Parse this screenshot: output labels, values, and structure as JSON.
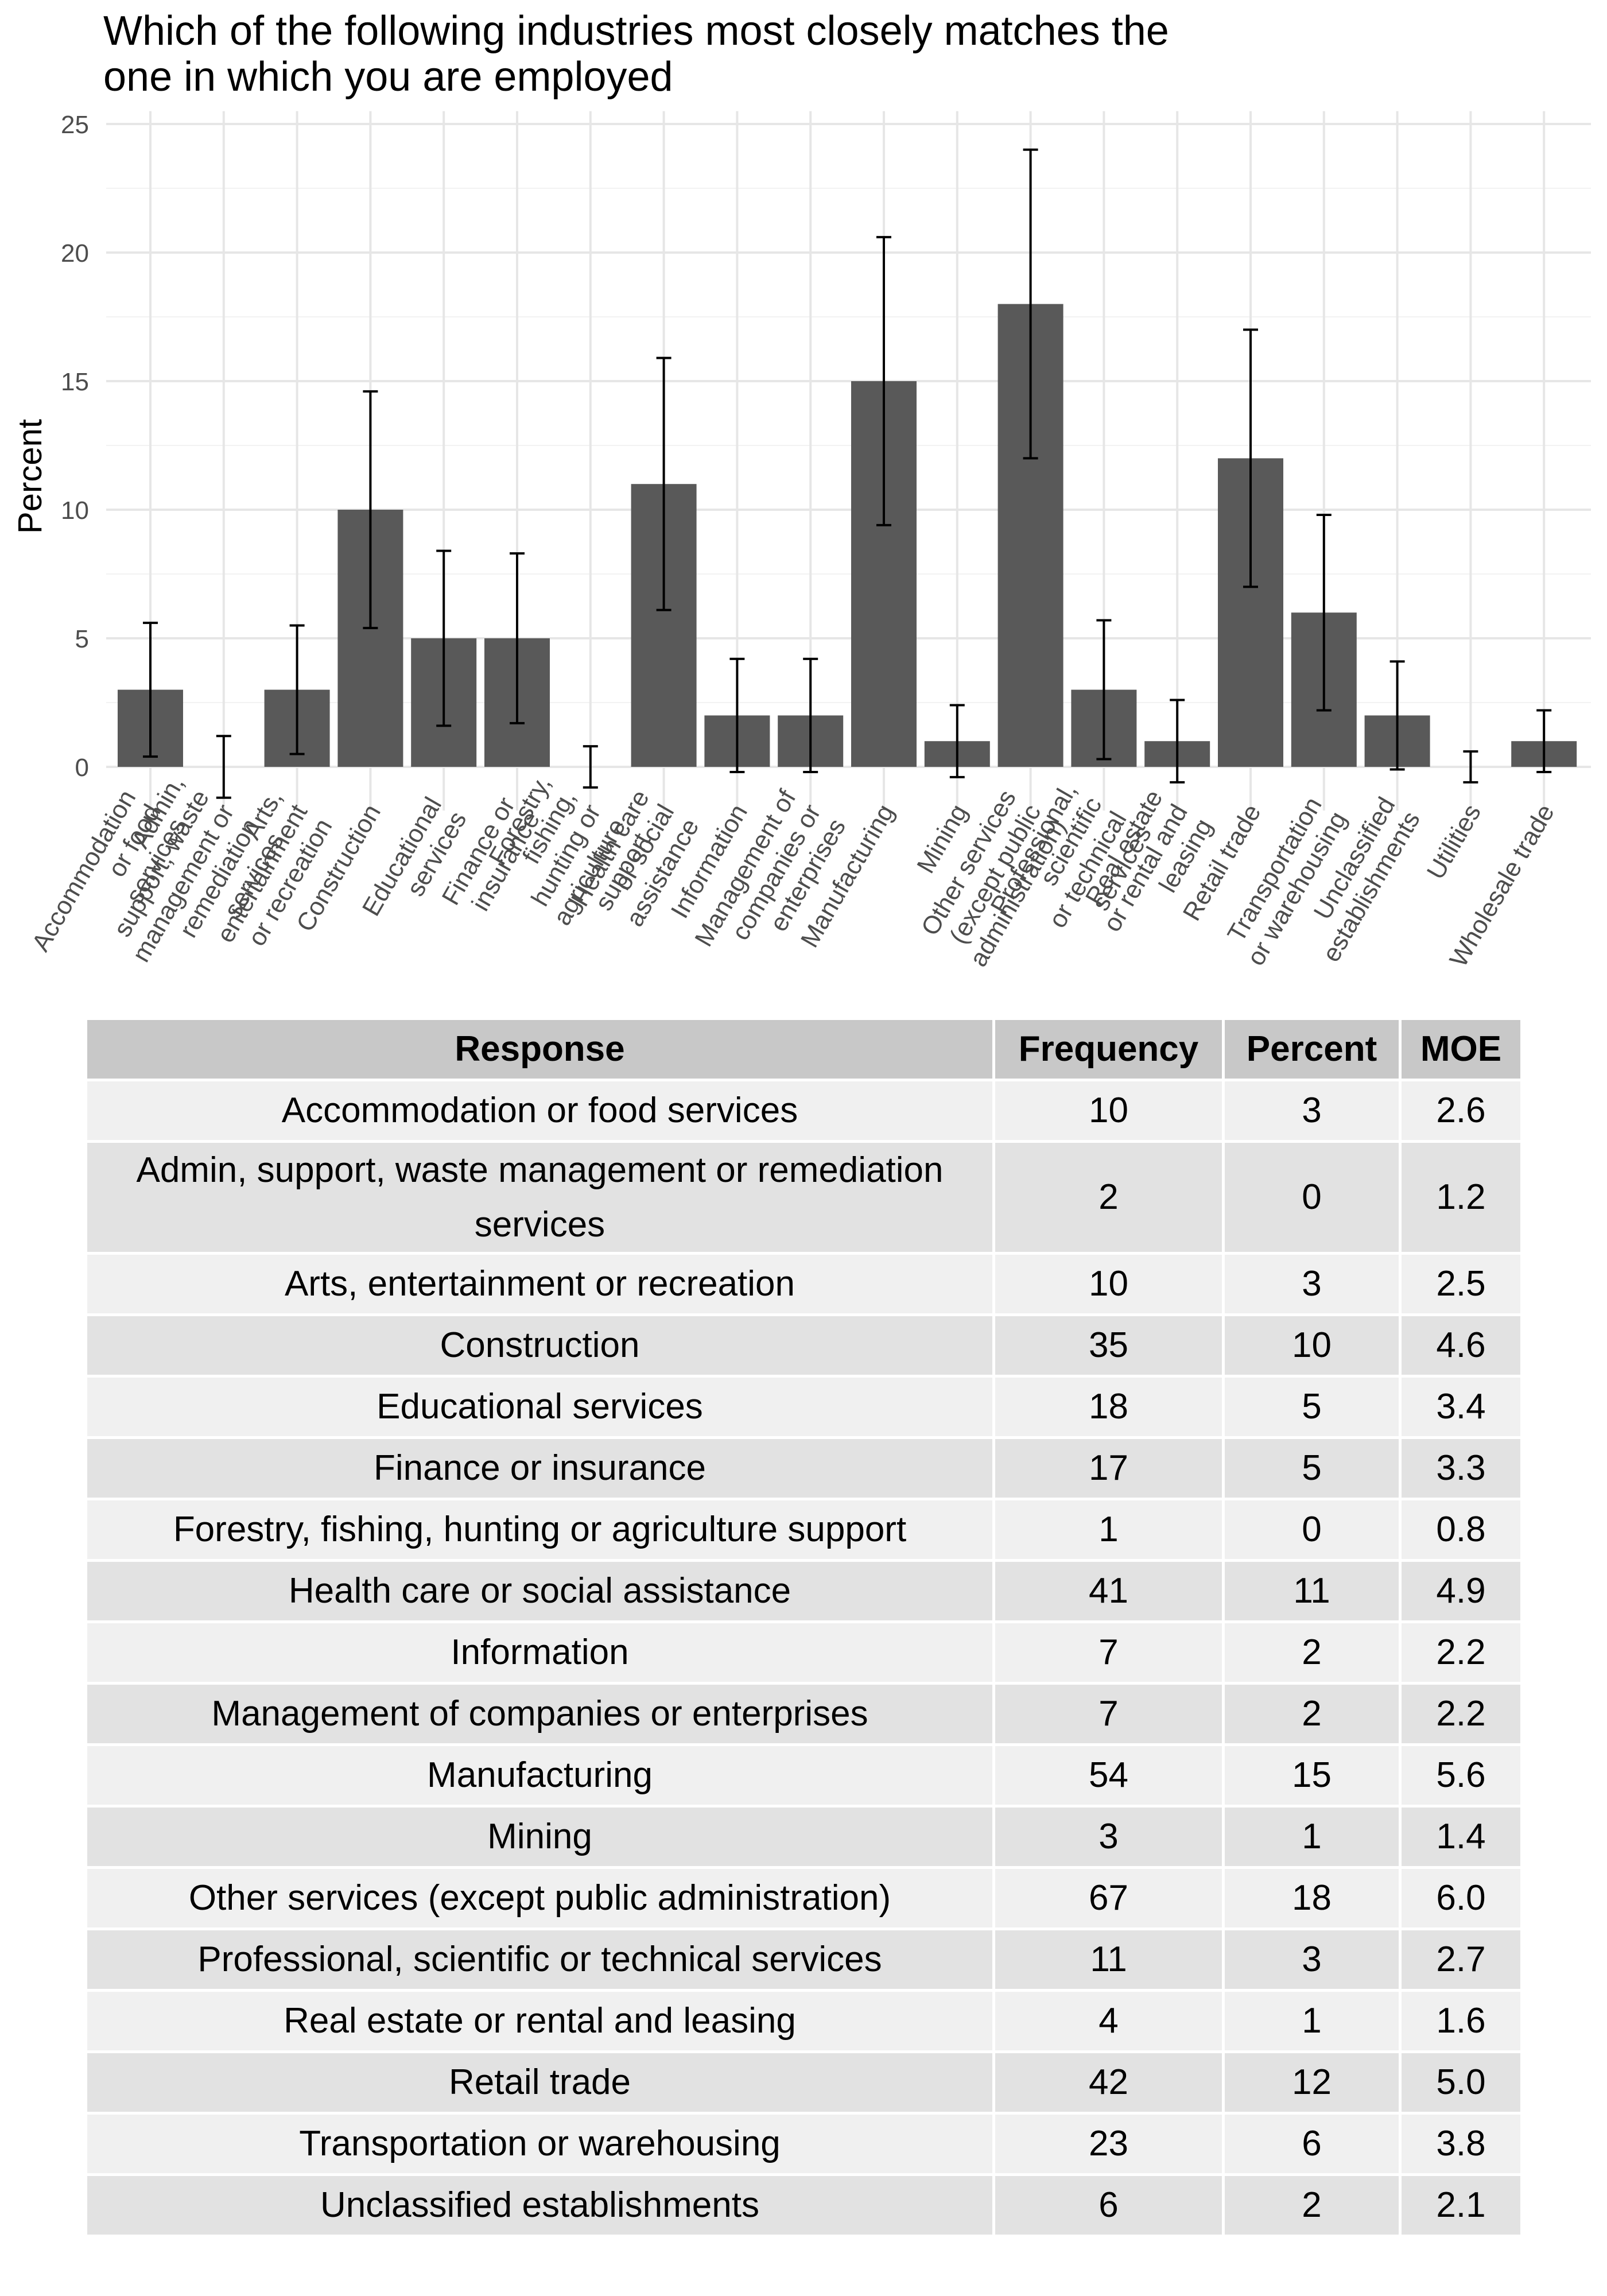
{
  "chart_data": {
    "type": "bar",
    "title": "Which of the following industries most closely matches the one in which you are employed",
    "title_lines": [
      "Which of the following industries most closely matches the",
      "one in which you are employed"
    ],
    "xlabel": "",
    "ylabel": "Percent",
    "ylim": [
      -1.7,
      25.5
    ],
    "yticks": [
      0,
      5,
      10,
      15,
      20,
      25
    ],
    "grid": true,
    "error_bars": true,
    "bar_color": "#595959",
    "categories": [
      "Accommodation or food services",
      "Admin, support, waste management or remediation services",
      "Arts, entertainment or recreation",
      "Construction",
      "Educational services",
      "Finance or insurance",
      "Forestry, fishing, hunting or agriculture support",
      "Health care or social assistance",
      "Information",
      "Management of companies or enterprises",
      "Manufacturing",
      "Mining",
      "Other services (except public administration)",
      "Professional, scientific or technical services",
      "Real estate or rental and leasing",
      "Retail trade",
      "Transportation or warehousing",
      "Unclassified establishments",
      "Utilities",
      "Wholesale trade"
    ],
    "tick_labels": [
      [
        "Accommodation",
        "or food",
        "services"
      ],
      [
        "Admin,",
        "support, waste",
        "management or",
        "remediation",
        "services"
      ],
      [
        "Arts,",
        "entertainment",
        "or recreation"
      ],
      [
        "Construction"
      ],
      [
        "Educational",
        "services"
      ],
      [
        "Finance or",
        "insurance"
      ],
      [
        "Forestry,",
        "fishing,",
        "hunting or",
        "agriculture",
        "support"
      ],
      [
        "Health care",
        "or social",
        "assistance"
      ],
      [
        "Information"
      ],
      [
        "Management of",
        "companies or",
        "enterprises"
      ],
      [
        "Manufacturing"
      ],
      [
        "Mining"
      ],
      [
        "Other services",
        "(except public",
        "administration)"
      ],
      [
        "Professional,",
        "scientific",
        "or technical",
        "services"
      ],
      [
        "Real estate",
        "or rental and",
        "leasing"
      ],
      [
        "Retail trade"
      ],
      [
        "Transportation",
        "or warehousing"
      ],
      [
        "Unclassified",
        "establishments"
      ],
      [
        "Utilities"
      ],
      [
        "Wholesale trade"
      ]
    ],
    "values": [
      3,
      0,
      3,
      10,
      5,
      5,
      0,
      11,
      2,
      2,
      15,
      1,
      18,
      3,
      1,
      12,
      6,
      2,
      0,
      1
    ],
    "moe": [
      2.6,
      1.2,
      2.5,
      4.6,
      3.4,
      3.3,
      0.8,
      4.9,
      2.2,
      2.2,
      5.6,
      1.4,
      6.0,
      2.7,
      1.6,
      5.0,
      3.8,
      2.1,
      0.6,
      1.2
    ]
  },
  "table": {
    "headers": {
      "response": "Response",
      "frequency": "Frequency",
      "percent": "Percent",
      "moe": "MOE"
    },
    "rows": [
      {
        "response": "Accommodation or food services",
        "frequency": "10",
        "percent": "3",
        "moe": "2.6"
      },
      {
        "response": "Admin, support, waste management or remediation services",
        "frequency": "2",
        "percent": "0",
        "moe": "1.2"
      },
      {
        "response": "Arts, entertainment or recreation",
        "frequency": "10",
        "percent": "3",
        "moe": "2.5"
      },
      {
        "response": "Construction",
        "frequency": "35",
        "percent": "10",
        "moe": "4.6"
      },
      {
        "response": "Educational services",
        "frequency": "18",
        "percent": "5",
        "moe": "3.4"
      },
      {
        "response": "Finance or insurance",
        "frequency": "17",
        "percent": "5",
        "moe": "3.3"
      },
      {
        "response": "Forestry, fishing, hunting or agriculture support",
        "frequency": "1",
        "percent": "0",
        "moe": "0.8"
      },
      {
        "response": "Health care or social assistance",
        "frequency": "41",
        "percent": "11",
        "moe": "4.9"
      },
      {
        "response": "Information",
        "frequency": "7",
        "percent": "2",
        "moe": "2.2"
      },
      {
        "response": "Management of companies or enterprises",
        "frequency": "7",
        "percent": "2",
        "moe": "2.2"
      },
      {
        "response": "Manufacturing",
        "frequency": "54",
        "percent": "15",
        "moe": "5.6"
      },
      {
        "response": "Mining",
        "frequency": "3",
        "percent": "1",
        "moe": "1.4"
      },
      {
        "response": "Other services (except public administration)",
        "frequency": "67",
        "percent": "18",
        "moe": "6.0"
      },
      {
        "response": "Professional, scientific or technical services",
        "frequency": "11",
        "percent": "3",
        "moe": "2.7"
      },
      {
        "response": "Real estate or rental and leasing",
        "frequency": "4",
        "percent": "1",
        "moe": "1.6"
      },
      {
        "response": "Retail trade",
        "frequency": "42",
        "percent": "12",
        "moe": "5.0"
      },
      {
        "response": "Transportation or warehousing",
        "frequency": "23",
        "percent": "6",
        "moe": "3.8"
      },
      {
        "response": "Unclassified establishments",
        "frequency": "6",
        "percent": "2",
        "moe": "2.1"
      }
    ]
  }
}
